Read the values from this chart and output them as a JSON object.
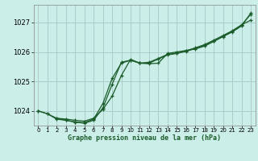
{
  "title": "Graphe pression niveau de la mer (hPa)",
  "bg_color": "#cceee8",
  "grid_color": "#aacccc",
  "line_color": "#1a5c2a",
  "xlim": [
    -0.5,
    23.5
  ],
  "ylim": [
    1023.5,
    1027.6
  ],
  "xticks": [
    0,
    1,
    2,
    3,
    4,
    5,
    6,
    7,
    8,
    9,
    10,
    11,
    12,
    13,
    14,
    15,
    16,
    17,
    18,
    19,
    20,
    21,
    22,
    23
  ],
  "yticks": [
    1024,
    1025,
    1026,
    1027
  ],
  "series1_x": [
    0,
    1,
    2,
    3,
    4,
    5,
    6,
    7,
    8,
    9,
    10,
    11,
    12,
    13,
    14,
    15,
    16,
    17,
    18,
    19,
    20,
    21,
    22,
    23
  ],
  "series1_y": [
    1024.0,
    1023.9,
    1023.75,
    1023.72,
    1023.68,
    1023.65,
    1023.75,
    1024.05,
    1024.5,
    1025.2,
    1025.75,
    1025.62,
    1025.6,
    1025.62,
    1025.95,
    1026.0,
    1026.05,
    1026.1,
    1026.2,
    1026.36,
    1026.52,
    1026.68,
    1026.88,
    1027.32
  ],
  "series2_x": [
    0,
    1,
    2,
    3,
    4,
    5,
    6,
    7,
    8,
    9,
    10,
    11,
    12,
    13,
    14,
    15,
    16,
    17,
    18,
    19,
    20,
    21,
    22,
    23
  ],
  "series2_y": [
    1024.0,
    1023.9,
    1023.72,
    1023.68,
    1023.62,
    1023.58,
    1023.68,
    1024.1,
    1024.9,
    1025.65,
    1025.72,
    1025.62,
    1025.65,
    1025.78,
    1025.92,
    1025.96,
    1026.04,
    1026.14,
    1026.25,
    1026.4,
    1026.56,
    1026.72,
    1026.92,
    1027.08
  ],
  "series3_x": [
    2,
    3,
    4,
    5,
    6,
    7,
    8,
    9,
    10,
    11,
    12,
    13,
    14,
    15,
    16,
    17,
    18,
    19,
    20,
    21,
    22,
    23
  ],
  "series3_y": [
    1023.75,
    1023.68,
    1023.62,
    1023.6,
    1023.72,
    1024.25,
    1025.1,
    1025.62,
    1025.72,
    1025.62,
    1025.62,
    1025.76,
    1025.9,
    1025.95,
    1026.02,
    1026.12,
    1026.22,
    1026.36,
    1026.54,
    1026.7,
    1026.92,
    1027.28
  ]
}
